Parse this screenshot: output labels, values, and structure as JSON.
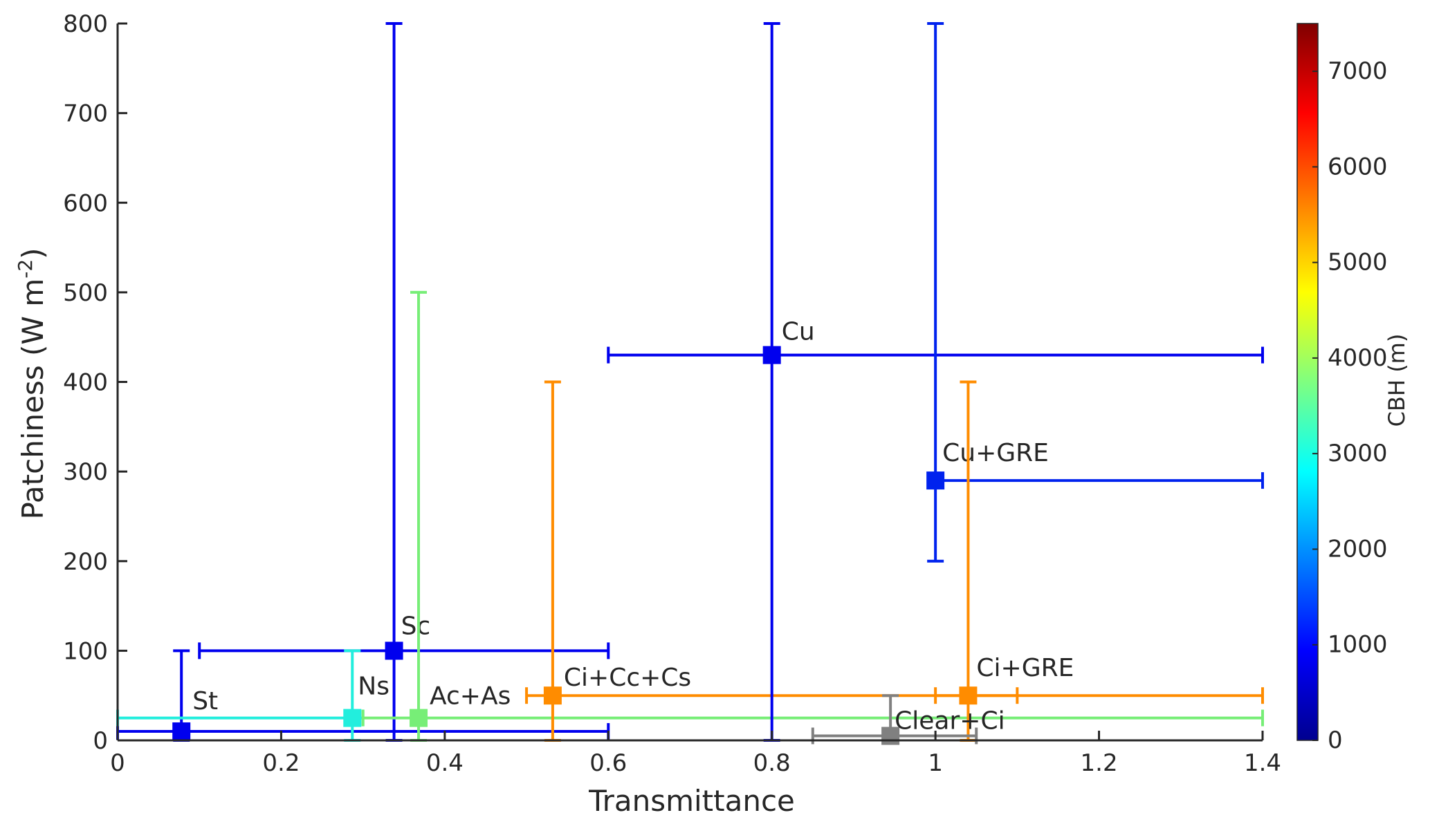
{
  "chart_data": {
    "type": "scatter",
    "title": "",
    "xlabel": "Transmittance",
    "ylabel_main": "Patchiness (W m",
    "ylabel_sup": "-2",
    "ylabel_close": ")",
    "xlim": [
      0,
      1.4
    ],
    "ylim": [
      0,
      800
    ],
    "x_ticks": [
      0,
      0.2,
      0.4,
      0.6,
      0.8,
      1,
      1.2,
      1.4
    ],
    "x_tick_labels": [
      "0",
      "0.2",
      "0.4",
      "0.6",
      "0.8",
      "1",
      "1.2",
      "1.4"
    ],
    "y_ticks": [
      0,
      100,
      200,
      300,
      400,
      500,
      600,
      700,
      800
    ],
    "y_tick_labels": [
      "0",
      "100",
      "200",
      "300",
      "400",
      "500",
      "600",
      "700",
      "800"
    ],
    "grid": false,
    "colorbar": {
      "label": "CBH (m)",
      "range": [
        0,
        7500
      ],
      "colormap": "jet",
      "ticks": [
        0,
        1000,
        2000,
        3000,
        4000,
        5000,
        6000,
        7000
      ],
      "tick_labels": [
        "0",
        "1000",
        "2000",
        "3000",
        "4000",
        "5000",
        "6000",
        "7000"
      ]
    },
    "points": [
      {
        "label": "St",
        "x": 0.078,
        "y": 10,
        "x_err": [
          0,
          0.6
        ],
        "y_err": [
          0,
          100
        ],
        "color": "#0000ee"
      },
      {
        "label": "Sc",
        "x": 0.338,
        "y": 100,
        "x_err": [
          0.1,
          0.6
        ],
        "y_err": [
          0,
          800
        ],
        "color": "#0000ee"
      },
      {
        "label": "Ns",
        "x": 0.287,
        "y": 25,
        "x_err": [
          0,
          0.3
        ],
        "y_err": [
          0,
          100
        ],
        "color": "#22eedd"
      },
      {
        "label": "Ac+As",
        "x": 0.368,
        "y": 25,
        "x_err": [
          0.3,
          1.4
        ],
        "y_err": [
          0,
          500
        ],
        "color": "#77ee77"
      },
      {
        "label": "Ci+Cc+Cs",
        "x": 0.532,
        "y": 50,
        "x_err": [
          0.5,
          1.1
        ],
        "y_err": [
          0,
          400
        ],
        "color": "#ff8c00"
      },
      {
        "label": "Cu",
        "x": 0.8,
        "y": 430,
        "x_err": [
          0.6,
          1.4
        ],
        "y_err": [
          0,
          800
        ],
        "color": "#0000ee"
      },
      {
        "label": "Cu+GRE",
        "x": 1.0,
        "y": 290,
        "x_err": [
          1.0,
          1.4
        ],
        "y_err": [
          200,
          800
        ],
        "color": "#0022ee"
      },
      {
        "label": "Ci+GRE",
        "x": 1.04,
        "y": 50,
        "x_err": [
          1.0,
          1.4
        ],
        "y_err": [
          0,
          400
        ],
        "color": "#ff8c00"
      },
      {
        "label": "Clear+Ci",
        "x": 0.945,
        "y": 5,
        "x_err": [
          0.85,
          1.05
        ],
        "y_err": [
          0,
          50
        ],
        "color": "#808080"
      }
    ],
    "colors": {
      "axis": "#262626",
      "background": "#ffffff"
    }
  }
}
